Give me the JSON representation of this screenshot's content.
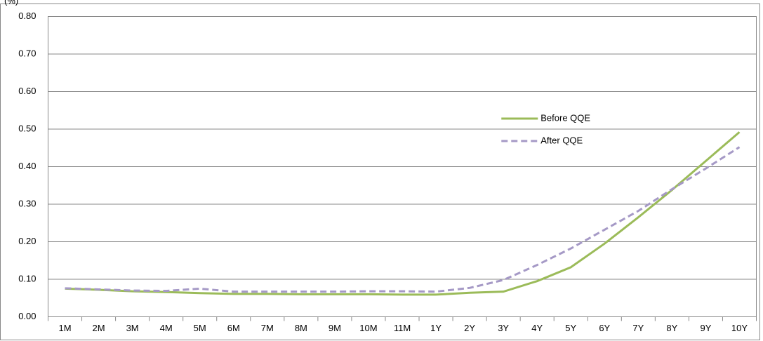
{
  "chart_data": {
    "type": "line",
    "y_label": "(%)",
    "categories": [
      "1M",
      "2M",
      "3M",
      "4M",
      "5M",
      "6M",
      "7M",
      "8M",
      "9M",
      "10M",
      "11M",
      "1Y",
      "2Y",
      "3Y",
      "4Y",
      "5Y",
      "6Y",
      "7Y",
      "8Y",
      "9Y",
      "10Y"
    ],
    "series": [
      {
        "name": "Before QQE",
        "color": "#9bbb59",
        "dash": false,
        "values": [
          0.075,
          0.072,
          0.068,
          0.066,
          0.063,
          0.061,
          0.061,
          0.06,
          0.06,
          0.06,
          0.059,
          0.059,
          0.064,
          0.067,
          0.095,
          0.132,
          0.195,
          0.265,
          0.338,
          0.415,
          0.492
        ]
      },
      {
        "name": "After QQE",
        "color": "#a599c6",
        "dash": true,
        "values": [
          0.076,
          0.073,
          0.07,
          0.069,
          0.075,
          0.067,
          0.067,
          0.067,
          0.067,
          0.068,
          0.068,
          0.067,
          0.077,
          0.098,
          0.138,
          0.182,
          0.232,
          0.282,
          0.34,
          0.395,
          0.452
        ]
      }
    ],
    "ylim": [
      0,
      0.8
    ],
    "yticks": [
      {
        "value": 0,
        "label": "0.00"
      },
      {
        "value": 0.1,
        "label": "0.10"
      },
      {
        "value": 0.2,
        "label": "0.20"
      },
      {
        "value": 0.3,
        "label": "0.30"
      },
      {
        "value": 0.4,
        "label": "0.40"
      },
      {
        "value": 0.5,
        "label": "0.50"
      },
      {
        "value": 0.6,
        "label": "0.60"
      },
      {
        "value": 0.7,
        "label": "0.70"
      },
      {
        "value": 0.8,
        "label": "0.80"
      }
    ],
    "grid": true,
    "legend": "center-right"
  }
}
